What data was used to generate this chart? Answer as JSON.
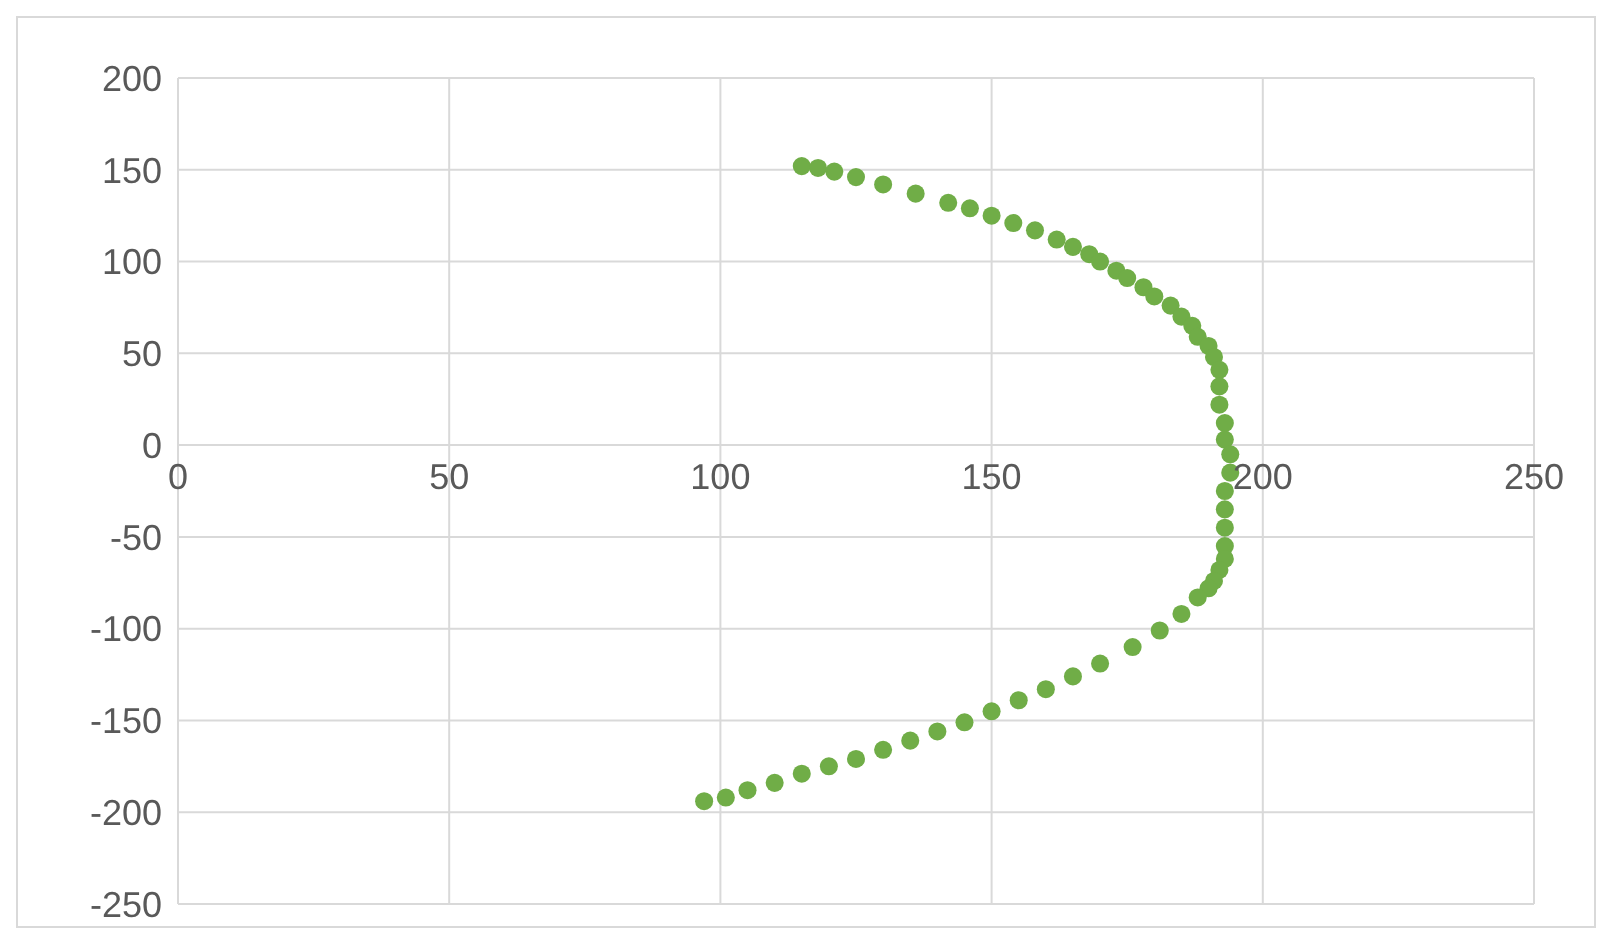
{
  "chart_data": {
    "type": "scatter",
    "xlim": [
      0,
      250
    ],
    "xticks": [
      0,
      50,
      100,
      150,
      200,
      250
    ],
    "ylim": [
      -250,
      200
    ],
    "yticks": [
      -250,
      -200,
      -150,
      -100,
      -50,
      0,
      50,
      100,
      150,
      200
    ],
    "grid": true,
    "marker": "circle",
    "series": [
      {
        "color": "#70ad47",
        "x": [
          115,
          118,
          121,
          125,
          130,
          136,
          142,
          146,
          150,
          154,
          158,
          162,
          165,
          168,
          170,
          173,
          175,
          178,
          180,
          183,
          185,
          187,
          188,
          190,
          191,
          192,
          192,
          192,
          193,
          193,
          194,
          194,
          193,
          193,
          193,
          193,
          193,
          192,
          191,
          190,
          188,
          185,
          181,
          176,
          170,
          165,
          160,
          155,
          150,
          145,
          140,
          135,
          130,
          125,
          120,
          115,
          110,
          105,
          101,
          97
        ],
        "values": [
          152,
          151,
          149,
          146,
          142,
          137,
          132,
          129,
          125,
          121,
          117,
          112,
          108,
          104,
          100,
          95,
          91,
          86,
          81,
          76,
          70,
          65,
          59,
          54,
          48,
          41,
          32,
          22,
          12,
          3,
          -5,
          -15,
          -25,
          -35,
          -45,
          -55,
          -62,
          -68,
          -74,
          -78,
          -83,
          -92,
          -101,
          -110,
          -119,
          -126,
          -133,
          -139,
          -145,
          -151,
          -156,
          -161,
          -166,
          -171,
          -175,
          -179,
          -184,
          -188,
          -192,
          -194
        ]
      }
    ]
  }
}
